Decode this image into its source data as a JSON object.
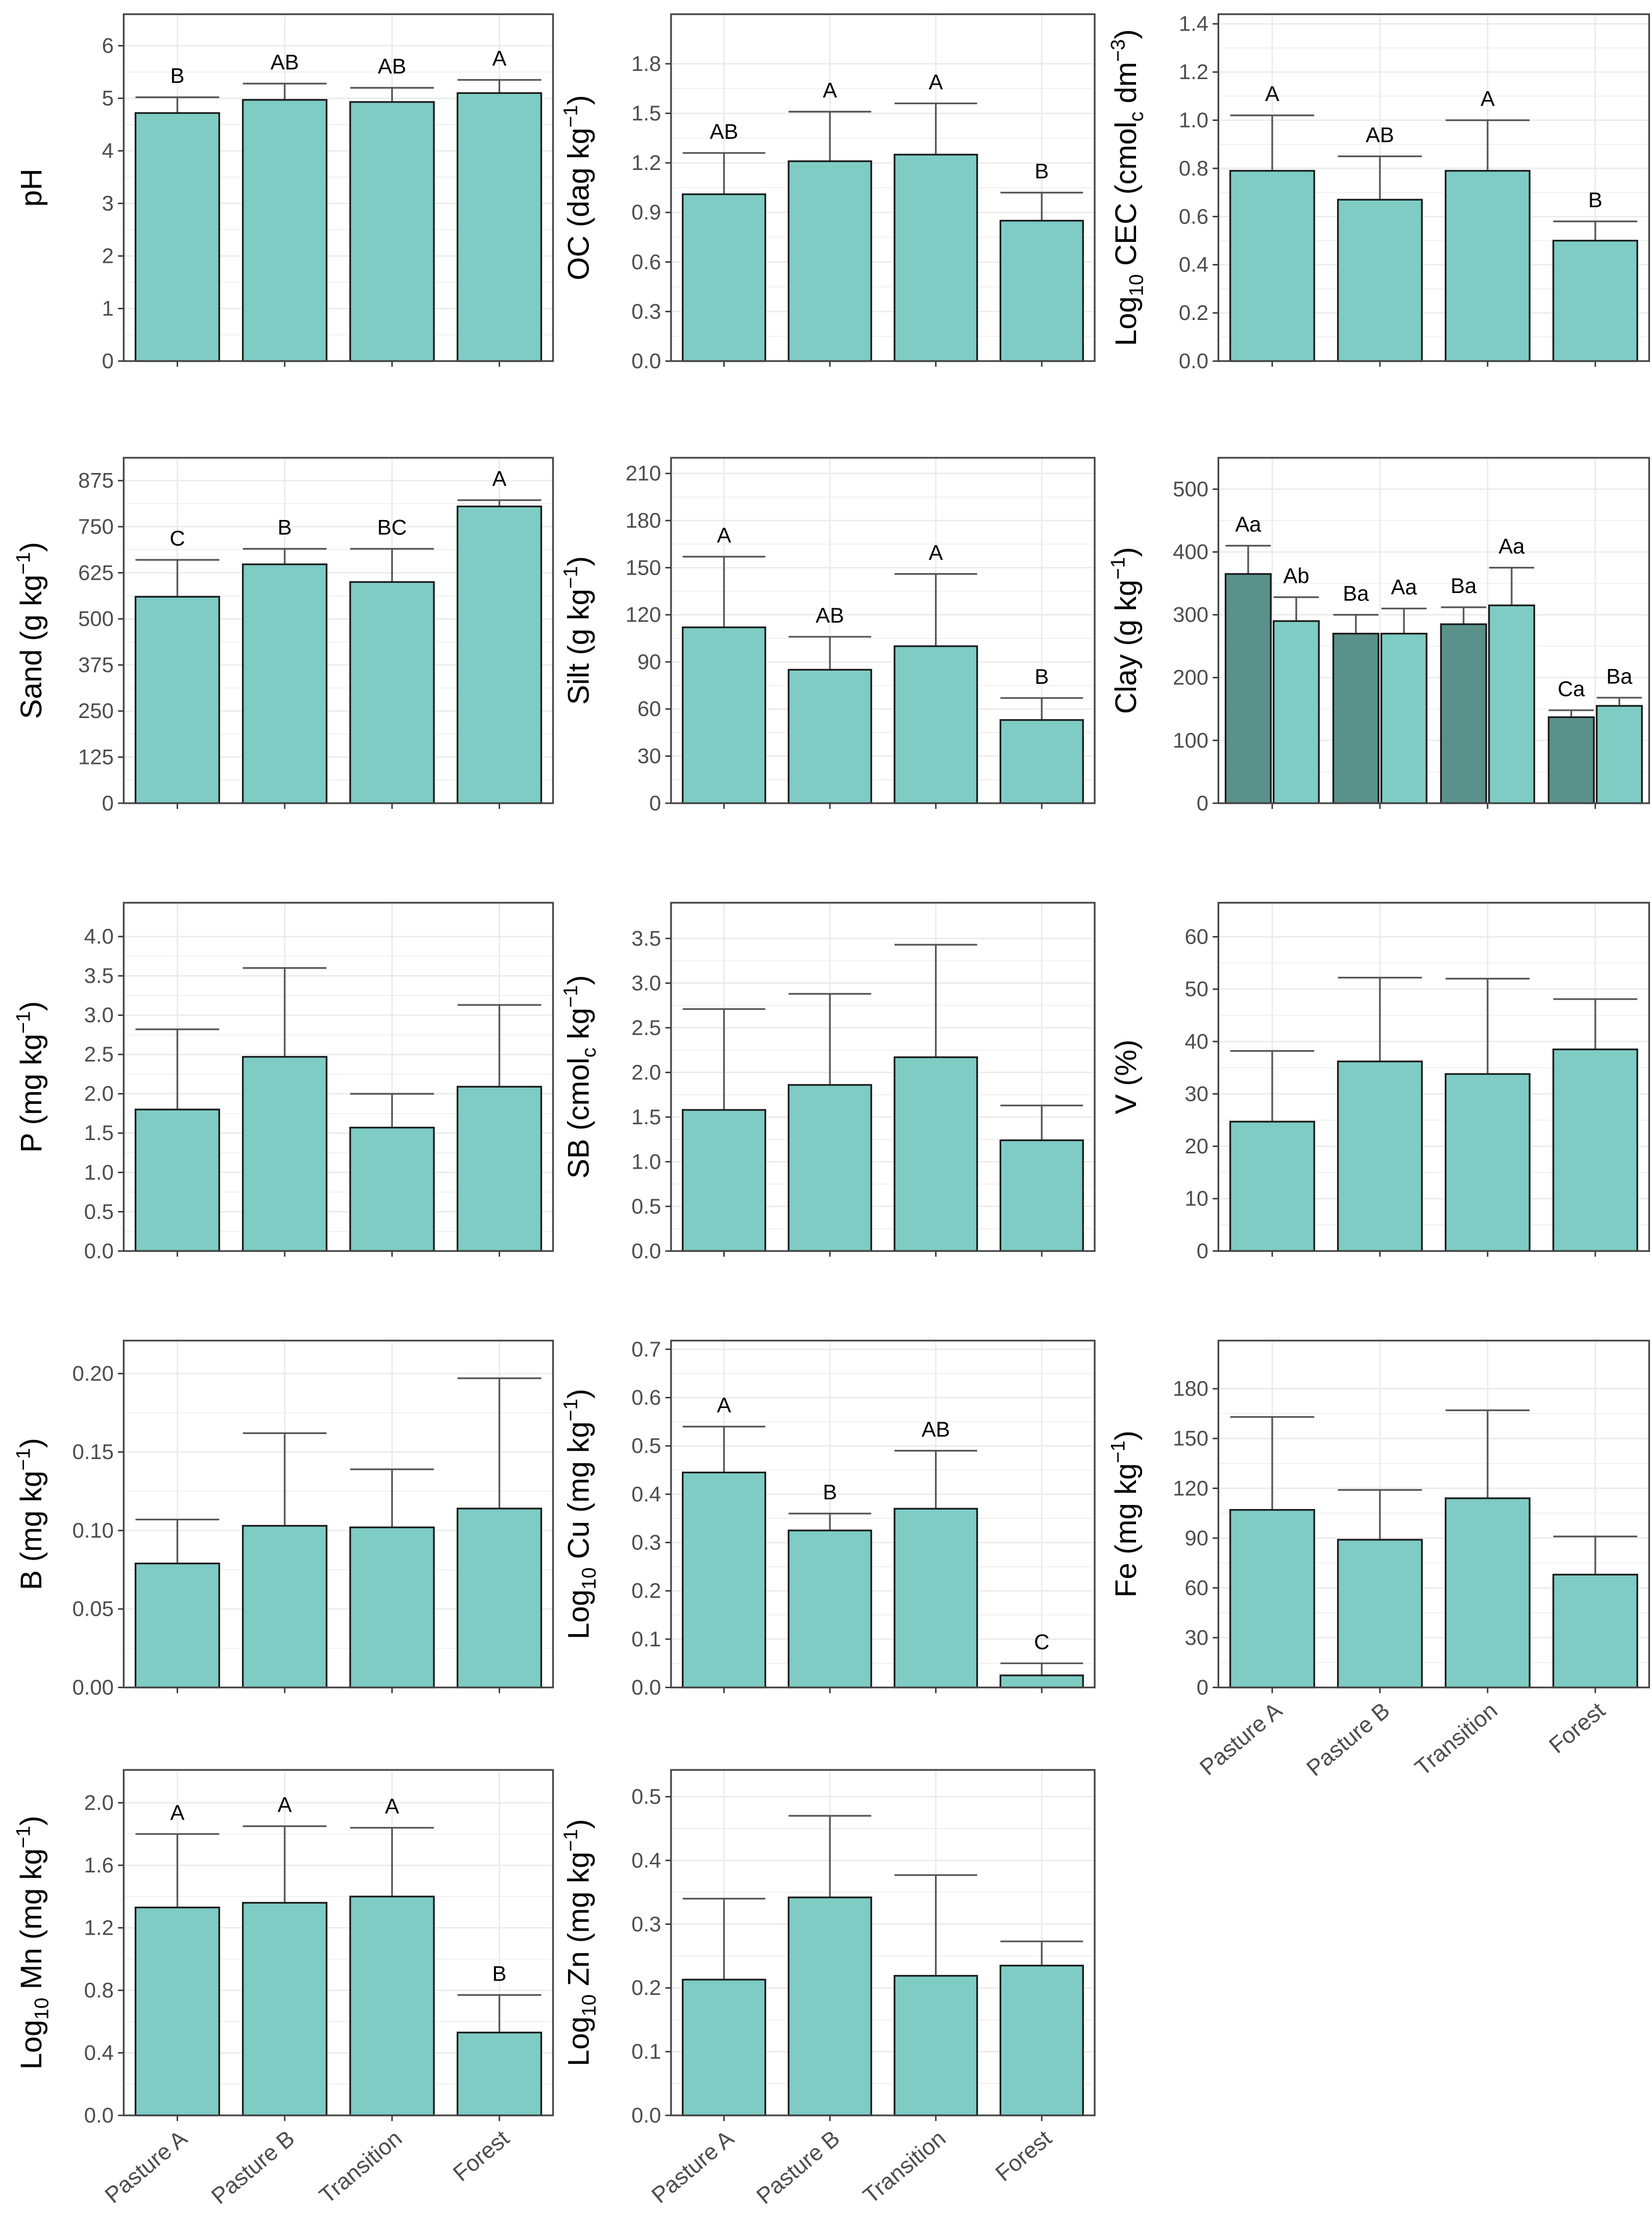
{
  "colors": {
    "bar": "#7ECCC4",
    "bar_dark": "#5A918A",
    "outline": "#1a1a1a",
    "error": "#555555",
    "grid": "#ebebeb",
    "panel_border": "#444444"
  },
  "chart_data": [
    {
      "type": "bar",
      "ylabel": [
        {
          "t": "pH"
        }
      ],
      "categories": [
        "Pasture A",
        "Pasture B",
        "Transition",
        "Forest"
      ],
      "ylim": [
        0,
        6.6
      ],
      "yticks": [
        "0",
        "1",
        "2",
        "3",
        "4",
        "5",
        "6"
      ],
      "tickvals": [
        0,
        1,
        2,
        3,
        4,
        5,
        6
      ],
      "grid": true,
      "series": [
        {
          "values": [
            4.72,
            4.97,
            4.93,
            5.1
          ],
          "error_upper": [
            5.02,
            5.28,
            5.2,
            5.35
          ],
          "letters": [
            "B",
            "AB",
            "AB",
            "A"
          ]
        }
      ]
    },
    {
      "type": "bar",
      "ylabel": [
        {
          "t": "OC (dag kg"
        },
        {
          "t": "−1",
          "sup": true
        },
        {
          "t": ")"
        }
      ],
      "categories": [
        "Pasture A",
        "Pasture B",
        "Transition",
        "Forest"
      ],
      "ylim": [
        0,
        2.1
      ],
      "yticks": [
        "0.0",
        "0.3",
        "0.6",
        "0.9",
        "1.2",
        "1.5",
        "1.8"
      ],
      "tickvals": [
        0,
        0.3,
        0.6,
        0.9,
        1.2,
        1.5,
        1.8
      ],
      "grid": true,
      "series": [
        {
          "values": [
            1.01,
            1.21,
            1.25,
            0.85
          ],
          "error_upper": [
            1.26,
            1.51,
            1.56,
            1.02
          ],
          "letters": [
            "AB",
            "A",
            "A",
            "B"
          ]
        }
      ]
    },
    {
      "type": "bar",
      "ylabel": [
        {
          "t": "Log"
        },
        {
          "t": "10",
          "sub": true
        },
        {
          "t": " CEC (cmol"
        },
        {
          "t": "c",
          "sub": true
        },
        {
          "t": " dm"
        },
        {
          "t": "−3",
          "sup": true
        },
        {
          "t": ")"
        }
      ],
      "categories": [
        "Pasture A",
        "Pasture B",
        "Transition",
        "Forest"
      ],
      "ylim": [
        0,
        1.44
      ],
      "yticks": [
        "0.0",
        "0.2",
        "0.4",
        "0.6",
        "0.8",
        "1.0",
        "1.2",
        "1.4"
      ],
      "tickvals": [
        0,
        0.2,
        0.4,
        0.6,
        0.8,
        1.0,
        1.2,
        1.4
      ],
      "grid": true,
      "series": [
        {
          "values": [
            0.79,
            0.67,
            0.79,
            0.5
          ],
          "error_upper": [
            1.02,
            0.85,
            1.0,
            0.58
          ],
          "letters": [
            "A",
            "AB",
            "A",
            "B"
          ]
        }
      ]
    },
    {
      "type": "bar",
      "ylabel": [
        {
          "t": "Sand (g kg"
        },
        {
          "t": "−1",
          "sup": true
        },
        {
          "t": ")"
        }
      ],
      "categories": [
        "Pasture A",
        "Pasture B",
        "Transition",
        "Forest"
      ],
      "ylim": [
        0,
        937
      ],
      "yticks": [
        "0",
        "125",
        "250",
        "375",
        "500",
        "625",
        "750",
        "875"
      ],
      "tickvals": [
        0,
        125,
        250,
        375,
        500,
        625,
        750,
        875
      ],
      "grid": true,
      "series": [
        {
          "values": [
            560,
            648,
            600,
            805
          ],
          "error_upper": [
            660,
            690,
            690,
            822
          ],
          "letters": [
            "C",
            "B",
            "BC",
            "A"
          ]
        }
      ]
    },
    {
      "type": "bar",
      "ylabel": [
        {
          "t": "Silt (g kg"
        },
        {
          "t": "−1",
          "sup": true
        },
        {
          "t": ")"
        }
      ],
      "categories": [
        "Pasture A",
        "Pasture B",
        "Transition",
        "Forest"
      ],
      "ylim": [
        0,
        220
      ],
      "yticks": [
        "0",
        "30",
        "60",
        "90",
        "120",
        "150",
        "180",
        "210"
      ],
      "tickvals": [
        0,
        30,
        60,
        90,
        120,
        150,
        180,
        210
      ],
      "grid": true,
      "series": [
        {
          "values": [
            112,
            85,
            100,
            53
          ],
          "error_upper": [
            157,
            106,
            146,
            67
          ],
          "letters": [
            "A",
            "AB",
            "A",
            "B"
          ]
        }
      ]
    },
    {
      "type": "bar",
      "ylabel": [
        {
          "t": "Clay (g kg"
        },
        {
          "t": "−1",
          "sup": true
        },
        {
          "t": ")"
        }
      ],
      "categories": [
        "Pasture A",
        "Pasture B",
        "Transition",
        "Forest"
      ],
      "ylim": [
        0,
        550
      ],
      "yticks": [
        "0",
        "100",
        "200",
        "300",
        "400",
        "500"
      ],
      "tickvals": [
        0,
        100,
        200,
        300,
        400,
        500
      ],
      "grid": true,
      "series": [
        {
          "color": "dark",
          "values": [
            365,
            270,
            285,
            137
          ],
          "error_upper": [
            410,
            300,
            312,
            148
          ],
          "letters": [
            "Aa",
            "Ba",
            "Ba",
            "Ca"
          ]
        },
        {
          "values": [
            290,
            270,
            315,
            155
          ],
          "error_upper": [
            328,
            310,
            375,
            168
          ],
          "letters": [
            "Ab",
            "Aa",
            "Aa",
            "Ba"
          ]
        }
      ]
    },
    {
      "type": "bar",
      "ylabel": [
        {
          "t": "P (mg kg"
        },
        {
          "t": "−1",
          "sup": true
        },
        {
          "t": ")"
        }
      ],
      "categories": [
        "Pasture A",
        "Pasture B",
        "Transition",
        "Forest"
      ],
      "ylim": [
        0,
        4.43
      ],
      "yticks": [
        "0.0",
        "0.5",
        "1.0",
        "1.5",
        "2.0",
        "2.5",
        "3.0",
        "3.5",
        "4.0"
      ],
      "tickvals": [
        0,
        0.5,
        1,
        1.5,
        2,
        2.5,
        3,
        3.5,
        4
      ],
      "grid": true,
      "series": [
        {
          "values": [
            1.8,
            2.47,
            1.57,
            2.09
          ],
          "error_upper": [
            2.82,
            3.6,
            2.0,
            3.13
          ]
        }
      ]
    },
    {
      "type": "bar",
      "ylabel": [
        {
          "t": "SB (cmol"
        },
        {
          "t": "c",
          "sub": true
        },
        {
          "t": " kg"
        },
        {
          "t": "−1",
          "sup": true
        },
        {
          "t": ")"
        }
      ],
      "categories": [
        "Pasture A",
        "Pasture B",
        "Transition",
        "Forest"
      ],
      "ylim": [
        0,
        3.9
      ],
      "yticks": [
        "0.0",
        "0.5",
        "1.0",
        "1.5",
        "2.0",
        "2.5",
        "3.0",
        "3.5"
      ],
      "tickvals": [
        0,
        0.5,
        1,
        1.5,
        2,
        2.5,
        3,
        3.5
      ],
      "grid": true,
      "series": [
        {
          "values": [
            1.58,
            1.86,
            2.17,
            1.24
          ],
          "error_upper": [
            2.71,
            2.88,
            3.43,
            1.63
          ]
        }
      ]
    },
    {
      "type": "bar",
      "ylabel": [
        {
          "t": "V (%)"
        }
      ],
      "categories": [
        "Pasture A",
        "Pasture B",
        "Transition",
        "Forest"
      ],
      "ylim": [
        0,
        66.5
      ],
      "yticks": [
        "0",
        "10",
        "20",
        "30",
        "40",
        "50",
        "60"
      ],
      "tickvals": [
        0,
        10,
        20,
        30,
        40,
        50,
        60
      ],
      "grid": true,
      "series": [
        {
          "values": [
            24.7,
            36.2,
            33.8,
            38.5
          ],
          "error_upper": [
            38.2,
            52.2,
            52.0,
            48.1
          ]
        }
      ]
    },
    {
      "type": "bar",
      "ylabel": [
        {
          "t": "B (mg kg"
        },
        {
          "t": "−1",
          "sup": true
        },
        {
          "t": ")"
        }
      ],
      "categories": [
        "Pasture A",
        "Pasture B",
        "Transition",
        "Forest"
      ],
      "ylim": [
        0,
        0.221
      ],
      "yticks": [
        "0.00",
        "0.05",
        "0.10",
        "0.15",
        "0.20"
      ],
      "tickvals": [
        0,
        0.05,
        0.1,
        0.15,
        0.2
      ],
      "grid": true,
      "series": [
        {
          "values": [
            0.079,
            0.103,
            0.102,
            0.114
          ],
          "error_upper": [
            0.107,
            0.162,
            0.139,
            0.197
          ]
        }
      ]
    },
    {
      "type": "bar",
      "ylabel": [
        {
          "t": "Log"
        },
        {
          "t": "10",
          "sub": true
        },
        {
          "t": " Cu (mg kg"
        },
        {
          "t": "−1",
          "sup": true
        },
        {
          "t": ")"
        }
      ],
      "categories": [
        "Pasture A",
        "Pasture B",
        "Transition",
        "Forest"
      ],
      "ylim": [
        0,
        0.718
      ],
      "yticks": [
        "0.0",
        "0.1",
        "0.2",
        "0.3",
        "0.4",
        "0.5",
        "0.6",
        "0.7"
      ],
      "tickvals": [
        0,
        0.1,
        0.2,
        0.3,
        0.4,
        0.5,
        0.6,
        0.7
      ],
      "grid": true,
      "series": [
        {
          "values": [
            0.445,
            0.325,
            0.37,
            0.025
          ],
          "error_upper": [
            0.54,
            0.36,
            0.49,
            0.05
          ],
          "letters": [
            "A",
            "B",
            "AB",
            "C"
          ]
        }
      ]
    },
    {
      "type": "bar",
      "ylabel": [
        {
          "t": "Fe (mg kg"
        },
        {
          "t": "−1",
          "sup": true
        },
        {
          "t": ")"
        }
      ],
      "categories": [
        "Pasture A",
        "Pasture B",
        "Transition",
        "Forest"
      ],
      "show_xlabels": true,
      "ylim": [
        0,
        209
      ],
      "yticks": [
        "0",
        "30",
        "60",
        "90",
        "120",
        "150",
        "180"
      ],
      "tickvals": [
        0,
        30,
        60,
        90,
        120,
        150,
        180
      ],
      "grid": true,
      "series": [
        {
          "values": [
            107,
            89,
            114,
            68
          ],
          "error_upper": [
            163,
            119,
            167,
            91
          ]
        }
      ]
    },
    {
      "type": "bar",
      "ylabel": [
        {
          "t": "Log"
        },
        {
          "t": "10",
          "sub": true
        },
        {
          "t": " Mn (mg kg"
        },
        {
          "t": "−1",
          "sup": true
        },
        {
          "t": ")"
        }
      ],
      "categories": [
        "Pasture A",
        "Pasture B",
        "Transition",
        "Forest"
      ],
      "show_xlabels": true,
      "ylim": [
        0,
        2.21
      ],
      "yticks": [
        "0.0",
        "0.4",
        "0.8",
        "1.2",
        "1.6",
        "2.0"
      ],
      "tickvals": [
        0,
        0.4,
        0.8,
        1.2,
        1.6,
        2.0
      ],
      "grid": true,
      "series": [
        {
          "values": [
            1.33,
            1.36,
            1.4,
            0.53
          ],
          "error_upper": [
            1.8,
            1.85,
            1.84,
            0.77
          ],
          "letters": [
            "A",
            "A",
            "A",
            "B"
          ]
        }
      ]
    },
    {
      "type": "bar",
      "ylabel": [
        {
          "t": "Log"
        },
        {
          "t": "10",
          "sub": true
        },
        {
          "t": " Zn (mg kg"
        },
        {
          "t": "−1",
          "sup": true
        },
        {
          "t": ")"
        }
      ],
      "categories": [
        "Pasture A",
        "Pasture B",
        "Transition",
        "Forest"
      ],
      "show_xlabels": true,
      "ylim": [
        0,
        0.542
      ],
      "yticks": [
        "0.0",
        "0.1",
        "0.2",
        "0.3",
        "0.4",
        "0.5"
      ],
      "tickvals": [
        0,
        0.1,
        0.2,
        0.3,
        0.4,
        0.5
      ],
      "grid": true,
      "series": [
        {
          "values": [
            0.213,
            0.342,
            0.219,
            0.235
          ],
          "error_upper": [
            0.34,
            0.47,
            0.377,
            0.273
          ]
        }
      ]
    }
  ]
}
